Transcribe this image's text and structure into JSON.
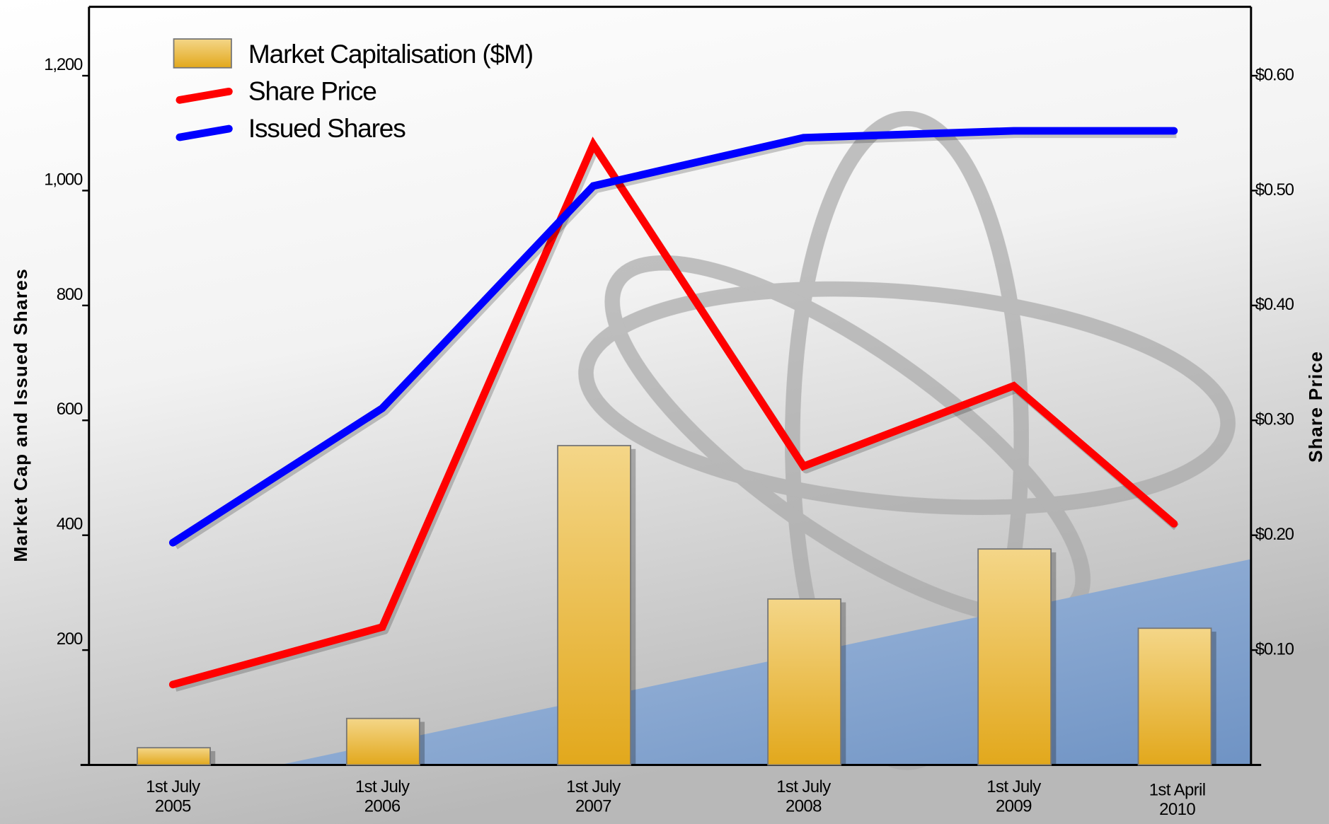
{
  "chart_data": {
    "type": "bar-line",
    "categories": [
      "1st July 2005",
      "1st July 2006",
      "1st July 2007",
      "1st July 2008",
      "1st July 2009",
      "1st April 2010"
    ],
    "ylabel": "Market Cap and Issued Shares",
    "y2label": "Share Price",
    "ylim": [
      0,
      1320
    ],
    "yticks": [
      200,
      400,
      600,
      800,
      {
        "value": 1000,
        "label": "1,000"
      },
      {
        "value": 1200,
        "label": "1,200"
      }
    ],
    "y2lim": [
      0,
      0.66
    ],
    "y2ticks": [
      {
        "value": 0.1,
        "label": "$0.10"
      },
      {
        "value": 0.2,
        "label": "$0.20"
      },
      {
        "value": 0.3,
        "label": "$0.30"
      },
      {
        "value": 0.4,
        "label": "$0.40"
      },
      {
        "value": 0.5,
        "label": "$0.50"
      },
      {
        "value": 0.6,
        "label": "$0.60"
      }
    ],
    "series": [
      {
        "name": "Market Capitalisation ($M)",
        "type": "bar",
        "color": "#e8b634",
        "values": [
          30,
          81,
          556,
          289,
          376,
          238
        ]
      },
      {
        "name": "Share Price",
        "type": "line",
        "axis": "y2",
        "color": "#ff0000",
        "values": [
          0.07,
          0.12,
          0.54,
          0.26,
          0.33,
          0.21
        ]
      },
      {
        "name": "Issued Shares",
        "type": "line",
        "color": "#0000ff",
        "values": [
          387,
          621,
          1008,
          1092,
          1104,
          1104
        ]
      }
    ]
  }
}
